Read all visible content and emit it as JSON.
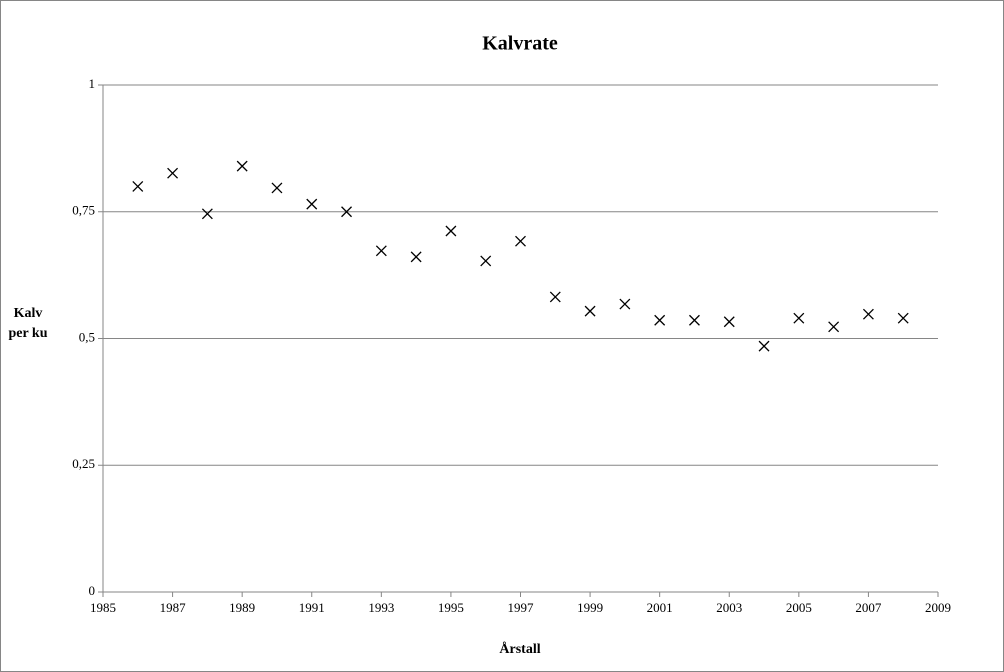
{
  "chart_data": {
    "type": "scatter",
    "title": "Kalvrate",
    "x_label": "Årstall",
    "y_label": "Kalv per ku",
    "x": [
      1986,
      1987,
      1988,
      1989,
      1990,
      1991,
      1992,
      1993,
      1994,
      1995,
      1996,
      1997,
      1998,
      1999,
      2000,
      2001,
      2002,
      2003,
      2004,
      2005,
      2006,
      2007,
      2008
    ],
    "values": [
      0.8,
      0.826,
      0.746,
      0.84,
      0.797,
      0.765,
      0.75,
      0.673,
      0.661,
      0.712,
      0.653,
      0.692,
      0.582,
      0.554,
      0.568,
      0.536,
      0.536,
      0.533,
      0.485,
      0.54,
      0.523,
      0.548,
      0.54
    ],
    "color": "#000000",
    "xlim": [
      1985,
      2009
    ],
    "xticks": [
      1985,
      1987,
      1989,
      1991,
      1993,
      1995,
      1997,
      1999,
      2001,
      2003,
      2005,
      2007,
      2009
    ],
    "ylim": [
      0,
      1
    ],
    "yticks": [
      0,
      {
        "value": 0.25,
        "label": "0,25"
      },
      {
        "value": 0.5,
        "label": "0,5"
      },
      {
        "value": 0.75,
        "label": "0,75"
      },
      1
    ],
    "grid": true
  }
}
